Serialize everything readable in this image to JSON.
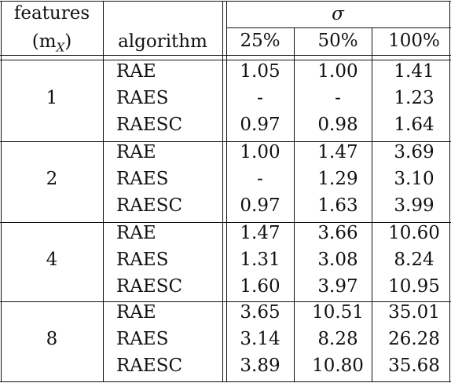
{
  "header": {
    "features_line1": "features",
    "features_line2": "(m",
    "features_sub": "X",
    "features_close": ")",
    "algorithm": "algorithm",
    "sigma": "σ",
    "cols": [
      "25%",
      "50%",
      "100%"
    ]
  },
  "groups": [
    {
      "features": "1",
      "rows": [
        {
          "algorithm": "RAE",
          "values": [
            "1.05",
            "1.00",
            "1.41"
          ]
        },
        {
          "algorithm": "RAES",
          "values": [
            "-",
            "-",
            "1.23"
          ]
        },
        {
          "algorithm": "RAESC",
          "values": [
            "0.97",
            "0.98",
            "1.64"
          ]
        }
      ]
    },
    {
      "features": "2",
      "rows": [
        {
          "algorithm": "RAE",
          "values": [
            "1.00",
            "1.47",
            "3.69"
          ]
        },
        {
          "algorithm": "RAES",
          "values": [
            "-",
            "1.29",
            "3.10"
          ]
        },
        {
          "algorithm": "RAESC",
          "values": [
            "0.97",
            "1.63",
            "3.99"
          ]
        }
      ]
    },
    {
      "features": "4",
      "rows": [
        {
          "algorithm": "RAE",
          "values": [
            "1.47",
            "3.66",
            "10.60"
          ]
        },
        {
          "algorithm": "RAES",
          "values": [
            "1.31",
            "3.08",
            "8.24"
          ]
        },
        {
          "algorithm": "RAESC",
          "values": [
            "1.60",
            "3.97",
            "10.95"
          ]
        }
      ]
    },
    {
      "features": "8",
      "rows": [
        {
          "algorithm": "RAE",
          "values": [
            "3.65",
            "10.51",
            "35.01"
          ]
        },
        {
          "algorithm": "RAES",
          "values": [
            "3.14",
            "8.28",
            "26.28"
          ]
        },
        {
          "algorithm": "RAESC",
          "values": [
            "3.89",
            "10.80",
            "35.68"
          ]
        }
      ]
    }
  ]
}
